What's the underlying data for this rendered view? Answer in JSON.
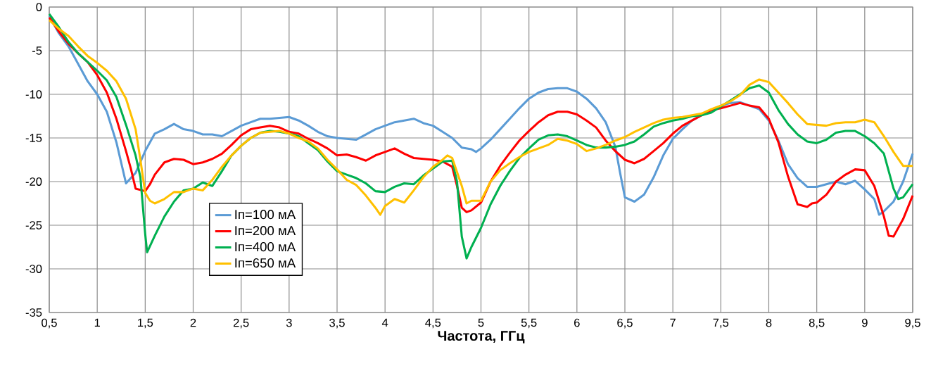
{
  "chart_data": {
    "type": "line",
    "xlabel": "Частота, ГГц",
    "series": [
      {
        "name": "Iп=100 мА",
        "color": "#5b9bd5",
        "x": [
          0.5,
          0.6,
          0.7,
          0.8,
          0.9,
          1.0,
          1.1,
          1.2,
          1.3,
          1.4,
          1.5,
          1.6,
          1.7,
          1.8,
          1.9,
          2.0,
          2.1,
          2.2,
          2.3,
          2.4,
          2.5,
          2.6,
          2.7,
          2.8,
          2.9,
          3.0,
          3.1,
          3.2,
          3.3,
          3.4,
          3.5,
          3.6,
          3.7,
          3.8,
          3.9,
          4.0,
          4.1,
          4.2,
          4.3,
          4.4,
          4.5,
          4.6,
          4.7,
          4.8,
          4.9,
          4.95,
          5.0,
          5.1,
          5.2,
          5.3,
          5.4,
          5.5,
          5.6,
          5.7,
          5.8,
          5.9,
          6.0,
          6.1,
          6.2,
          6.3,
          6.4,
          6.45,
          6.5,
          6.6,
          6.7,
          6.8,
          6.9,
          7.0,
          7.1,
          7.2,
          7.3,
          7.4,
          7.5,
          7.6,
          7.7,
          7.8,
          7.9,
          8.0,
          8.1,
          8.2,
          8.3,
          8.4,
          8.5,
          8.6,
          8.7,
          8.8,
          8.9,
          9.0,
          9.1,
          9.15,
          9.2,
          9.3,
          9.4,
          9.5
        ],
        "values": [
          -1,
          -3,
          -4.5,
          -6.5,
          -8.5,
          -10,
          -12,
          -15.5,
          -20.2,
          -19,
          -16.5,
          -14.5,
          -14,
          -13.4,
          -14,
          -14.2,
          -14.6,
          -14.6,
          -14.8,
          -14.2,
          -13.6,
          -13.2,
          -12.8,
          -12.8,
          -12.7,
          -12.6,
          -13,
          -13.6,
          -14.3,
          -14.8,
          -15,
          -15.1,
          -15.2,
          -14.6,
          -14,
          -13.6,
          -13.2,
          -13,
          -12.8,
          -13.3,
          -13.6,
          -14.3,
          -15,
          -16.1,
          -16.3,
          -16.6,
          -16.2,
          -15.2,
          -14,
          -12.8,
          -11.6,
          -10.5,
          -9.8,
          -9.4,
          -9.3,
          -9.3,
          -9.7,
          -10.5,
          -11.6,
          -13.2,
          -16,
          -19,
          -21.8,
          -22.3,
          -21.5,
          -19.5,
          -17,
          -15.1,
          -14,
          -13,
          -12.4,
          -11.8,
          -11.3,
          -11,
          -10.9,
          -11.3,
          -11.7,
          -13,
          -15.3,
          -18,
          -19.6,
          -20.6,
          -20.6,
          -20.3,
          -20,
          -20.3,
          -19.9,
          -20.9,
          -22,
          -23.8,
          -23.4,
          -22.3,
          -20,
          -16.8
        ]
      },
      {
        "name": "Iп=200 мА",
        "color": "#ff0000",
        "x": [
          0.5,
          0.6,
          0.7,
          0.8,
          0.9,
          1.0,
          1.1,
          1.2,
          1.3,
          1.35,
          1.4,
          1.5,
          1.55,
          1.6,
          1.7,
          1.8,
          1.9,
          2.0,
          2.1,
          2.2,
          2.3,
          2.4,
          2.5,
          2.6,
          2.7,
          2.8,
          2.9,
          3.0,
          3.1,
          3.2,
          3.3,
          3.4,
          3.5,
          3.6,
          3.7,
          3.8,
          3.9,
          4.0,
          4.1,
          4.2,
          4.3,
          4.4,
          4.5,
          4.6,
          4.7,
          4.75,
          4.8,
          4.85,
          4.9,
          5.0,
          5.1,
          5.2,
          5.3,
          5.4,
          5.5,
          5.6,
          5.7,
          5.8,
          5.9,
          6.0,
          6.1,
          6.2,
          6.3,
          6.4,
          6.5,
          6.6,
          6.7,
          6.8,
          6.9,
          7.0,
          7.1,
          7.2,
          7.3,
          7.4,
          7.5,
          7.6,
          7.7,
          7.8,
          7.9,
          8.0,
          8.1,
          8.2,
          8.3,
          8.4,
          8.45,
          8.5,
          8.6,
          8.7,
          8.8,
          8.9,
          9.0,
          9.1,
          9.2,
          9.25,
          9.3,
          9.4,
          9.5
        ],
        "values": [
          -1.2,
          -2.8,
          -4.2,
          -5.3,
          -6.3,
          -7.8,
          -9.8,
          -12.8,
          -16.5,
          -18.5,
          -20.8,
          -21.1,
          -20.3,
          -19.2,
          -17.8,
          -17.4,
          -17.5,
          -18,
          -17.8,
          -17.4,
          -16.8,
          -15.8,
          -14.7,
          -14,
          -13.8,
          -13.6,
          -13.8,
          -14.3,
          -14.5,
          -15.1,
          -15.6,
          -16.2,
          -17,
          -16.9,
          -17.2,
          -17.6,
          -17,
          -16.6,
          -16.2,
          -16.8,
          -17.3,
          -17.4,
          -17.5,
          -17.7,
          -18.3,
          -20.5,
          -23,
          -23.5,
          -23.3,
          -22.4,
          -20,
          -18.2,
          -16.7,
          -15.3,
          -14.2,
          -13.2,
          -12.4,
          -12,
          -12,
          -12.3,
          -13,
          -13.8,
          -15.3,
          -16.5,
          -17.5,
          -17.9,
          -17.4,
          -16.5,
          -15.6,
          -14.5,
          -13.6,
          -13,
          -12.4,
          -11.8,
          -11.6,
          -11.3,
          -11,
          -11.3,
          -11.5,
          -12.8,
          -15.5,
          -19.4,
          -22.6,
          -22.9,
          -22.5,
          -22.4,
          -21.5,
          -20,
          -19.2,
          -18.6,
          -18.7,
          -20.5,
          -24,
          -26.2,
          -26.3,
          -24.3,
          -21.6
        ]
      },
      {
        "name": "Iп=400 мА",
        "color": "#00b050",
        "x": [
          0.5,
          0.6,
          0.7,
          0.8,
          0.9,
          1.0,
          1.1,
          1.2,
          1.3,
          1.4,
          1.45,
          1.5,
          1.52,
          1.6,
          1.7,
          1.8,
          1.9,
          2.0,
          2.1,
          2.2,
          2.3,
          2.4,
          2.5,
          2.6,
          2.7,
          2.8,
          2.9,
          3.0,
          3.1,
          3.2,
          3.3,
          3.4,
          3.5,
          3.6,
          3.7,
          3.8,
          3.9,
          4.0,
          4.1,
          4.2,
          4.3,
          4.4,
          4.5,
          4.6,
          4.7,
          4.75,
          4.8,
          4.85,
          4.9,
          5.0,
          5.1,
          5.2,
          5.3,
          5.4,
          5.5,
          5.6,
          5.7,
          5.8,
          5.9,
          6.0,
          6.1,
          6.2,
          6.3,
          6.4,
          6.5,
          6.6,
          6.7,
          6.8,
          6.9,
          7.0,
          7.1,
          7.2,
          7.3,
          7.4,
          7.5,
          7.6,
          7.7,
          7.8,
          7.9,
          8.0,
          8.1,
          8.2,
          8.3,
          8.4,
          8.5,
          8.6,
          8.7,
          8.8,
          8.9,
          9.0,
          9.1,
          9.2,
          9.3,
          9.35,
          9.4,
          9.5
        ],
        "values": [
          -0.8,
          -2.3,
          -4,
          -5.3,
          -6.3,
          -7.3,
          -8.4,
          -10.3,
          -13.5,
          -17,
          -19.5,
          -26,
          -28.1,
          -26.2,
          -24,
          -22.3,
          -21,
          -20.8,
          -20.1,
          -20.5,
          -18.8,
          -17,
          -15.9,
          -15,
          -14.4,
          -14.2,
          -14.3,
          -14.5,
          -14.8,
          -15.6,
          -16.4,
          -17.7,
          -18.8,
          -19.2,
          -19.6,
          -20.2,
          -21.1,
          -21.2,
          -20.6,
          -20.2,
          -20.3,
          -19.3,
          -18.5,
          -17.7,
          -17.6,
          -20,
          -26.3,
          -28.8,
          -27.5,
          -25.3,
          -22.6,
          -20.5,
          -18.8,
          -17.3,
          -16.2,
          -15.2,
          -14.7,
          -14.6,
          -14.8,
          -15.3,
          -15.8,
          -16.1,
          -16.1,
          -16,
          -15.8,
          -15.4,
          -14.6,
          -13.7,
          -13.3,
          -13,
          -12.8,
          -12.5,
          -12.4,
          -12.1,
          -11.4,
          -10.7,
          -10,
          -9.3,
          -9,
          -9.8,
          -11.8,
          -13.4,
          -14.6,
          -15.4,
          -15.6,
          -15.2,
          -14.4,
          -14.2,
          -14.2,
          -14.8,
          -15.6,
          -16.8,
          -20.8,
          -22,
          -21.8,
          -20.3
        ]
      },
      {
        "name": "Iп=650 мА",
        "color": "#ffc000",
        "x": [
          0.5,
          0.6,
          0.7,
          0.8,
          0.9,
          1.0,
          1.1,
          1.2,
          1.3,
          1.4,
          1.45,
          1.5,
          1.55,
          1.6,
          1.7,
          1.8,
          1.9,
          2.0,
          2.1,
          2.2,
          2.3,
          2.4,
          2.5,
          2.6,
          2.7,
          2.8,
          2.9,
          3.0,
          3.1,
          3.2,
          3.3,
          3.4,
          3.5,
          3.6,
          3.7,
          3.8,
          3.9,
          3.95,
          4.0,
          4.1,
          4.2,
          4.3,
          4.4,
          4.5,
          4.6,
          4.65,
          4.7,
          4.8,
          4.85,
          4.9,
          5.0,
          5.1,
          5.2,
          5.3,
          5.4,
          5.5,
          5.6,
          5.7,
          5.8,
          5.9,
          6.0,
          6.1,
          6.2,
          6.3,
          6.4,
          6.5,
          6.6,
          6.7,
          6.8,
          6.9,
          7.0,
          7.1,
          7.2,
          7.3,
          7.4,
          7.5,
          7.6,
          7.7,
          7.8,
          7.9,
          8.0,
          8.1,
          8.2,
          8.3,
          8.4,
          8.5,
          8.6,
          8.7,
          8.8,
          8.9,
          9.0,
          9.1,
          9.2,
          9.3,
          9.4,
          9.5
        ],
        "values": [
          -1.5,
          -2.5,
          -3.3,
          -4.5,
          -5.6,
          -6.4,
          -7.3,
          -8.5,
          -10.5,
          -14,
          -17.5,
          -21.3,
          -22.2,
          -22.5,
          -22,
          -21.2,
          -21.2,
          -20.8,
          -21,
          -19.8,
          -18.3,
          -17,
          -15.9,
          -15,
          -14.4,
          -14.3,
          -14.2,
          -14.5,
          -15,
          -15.4,
          -16.2,
          -17.5,
          -18.6,
          -19.8,
          -20.4,
          -21.6,
          -23,
          -23.8,
          -22.8,
          -22,
          -22.4,
          -21,
          -19.5,
          -18.3,
          -17.5,
          -17,
          -17.3,
          -20.5,
          -22.5,
          -22.2,
          -22.2,
          -20,
          -18.7,
          -17.9,
          -17.2,
          -16.6,
          -16.2,
          -15.8,
          -15.1,
          -15.3,
          -15.7,
          -16.5,
          -16.2,
          -15.8,
          -15.3,
          -14.9,
          -14.3,
          -13.8,
          -13.3,
          -12.9,
          -12.7,
          -12.6,
          -12.4,
          -12.2,
          -11.7,
          -11.3,
          -10.8,
          -10.1,
          -8.9,
          -8.3,
          -8.6,
          -9.8,
          -11,
          -12.3,
          -13.4,
          -13.5,
          -13.6,
          -13.3,
          -13.2,
          -13.2,
          -12.9,
          -13.2,
          -14.8,
          -16.6,
          -18.2,
          -18.2
        ]
      }
    ],
    "xlim": [
      0.5,
      9.5
    ],
    "ylim": [
      -35,
      0
    ],
    "xticks": [
      {
        "value": 0.5,
        "label": "0,5"
      },
      1,
      {
        "value": 1.5,
        "label": "1,5"
      },
      2,
      {
        "value": 2.5,
        "label": "2,5"
      },
      3,
      {
        "value": 3.5,
        "label": "3,5"
      },
      4,
      {
        "value": 4.5,
        "label": "4,5"
      },
      5,
      {
        "value": 5.5,
        "label": "5,5"
      },
      6,
      {
        "value": 6.5,
        "label": "6,5"
      },
      7,
      {
        "value": 7.5,
        "label": "7,5"
      },
      8,
      {
        "value": 8.5,
        "label": "8,5"
      },
      9,
      {
        "value": 9.5,
        "label": "9,5"
      }
    ],
    "yticks": [
      -35,
      -30,
      -25,
      -20,
      -15,
      -10,
      -5,
      0
    ],
    "grid": true,
    "legend": "bottom left",
    "marker": "none",
    "line_style": "solid"
  }
}
